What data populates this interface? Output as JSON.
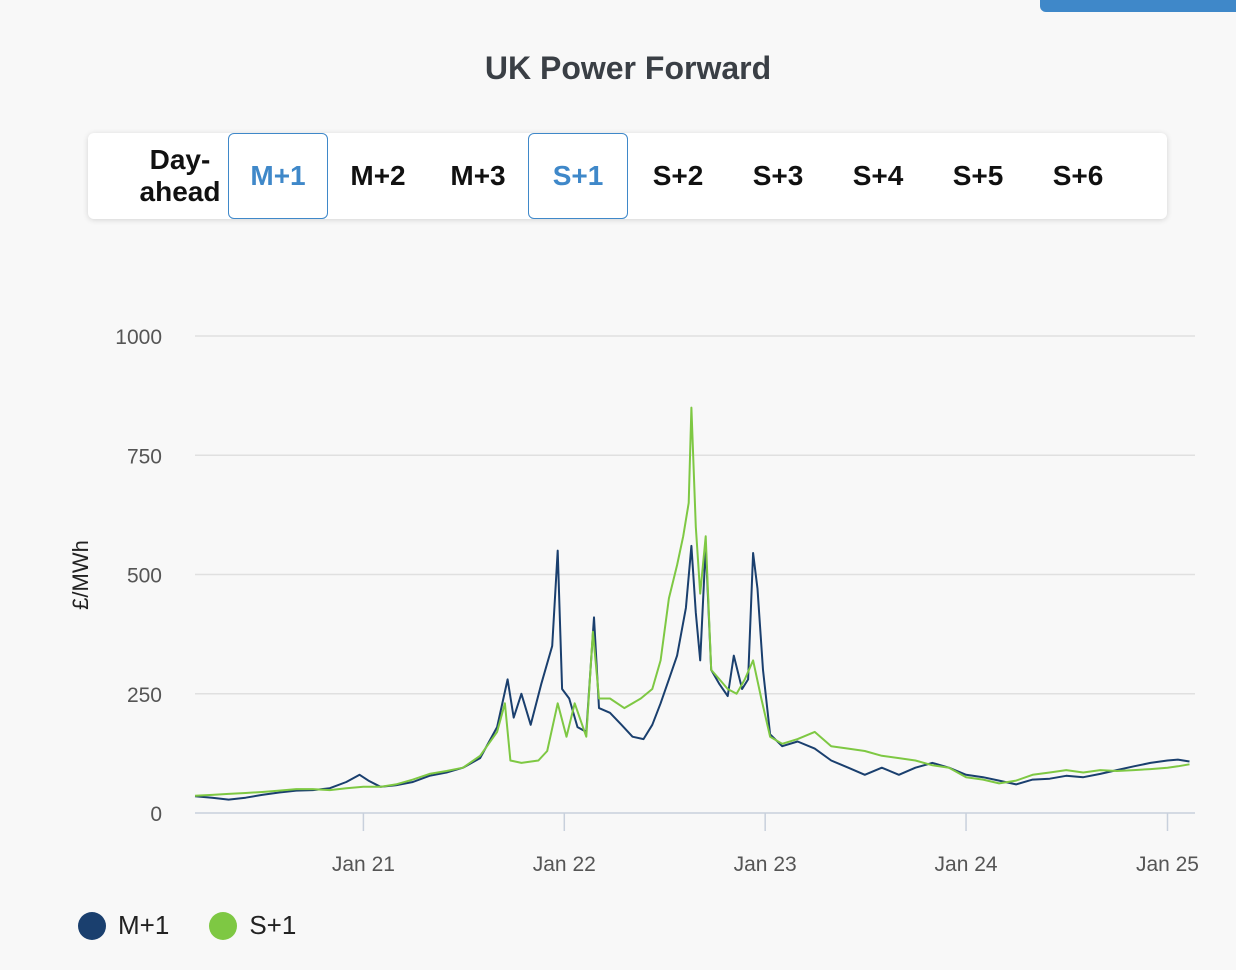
{
  "header": {
    "title": "UK Power Forward"
  },
  "tabs": [
    {
      "label": "Day-ahead",
      "active": false
    },
    {
      "label": "M+1",
      "active": true
    },
    {
      "label": "M+2",
      "active": false
    },
    {
      "label": "M+3",
      "active": false
    },
    {
      "label": "S+1",
      "active": true
    },
    {
      "label": "S+2",
      "active": false
    },
    {
      "label": "S+3",
      "active": false
    },
    {
      "label": "S+4",
      "active": false
    },
    {
      "label": "S+5",
      "active": false
    },
    {
      "label": "S+6",
      "active": false
    }
  ],
  "colors": {
    "accent": "#3f88c9",
    "m1": "#1a3f6e",
    "s1": "#7ec843",
    "grid": "#e0e0e0"
  },
  "chart_data": {
    "type": "line",
    "title": "UK Power Forward",
    "ylabel": "£/MWh",
    "xlabel": "",
    "ylim": [
      0,
      1000
    ],
    "yticks": [
      0,
      250,
      500,
      750,
      1000
    ],
    "xlim": [
      "2020-03-01",
      "2025-02-20"
    ],
    "xticks": [
      {
        "label": "Jan 21",
        "date": "2021-01-01"
      },
      {
        "label": "Jan 22",
        "date": "2022-01-01"
      },
      {
        "label": "Jan 23",
        "date": "2023-01-01"
      },
      {
        "label": "Jan 24",
        "date": "2024-01-01"
      },
      {
        "label": "Jan 25",
        "date": "2025-01-01"
      }
    ],
    "grid": true,
    "legend": "bottom-left",
    "series": [
      {
        "name": "M+1",
        "color": "#1a3f6e",
        "points": [
          [
            "2020-03-01",
            35
          ],
          [
            "2020-04-01",
            32
          ],
          [
            "2020-05-01",
            28
          ],
          [
            "2020-06-01",
            32
          ],
          [
            "2020-07-01",
            38
          ],
          [
            "2020-08-01",
            43
          ],
          [
            "2020-09-01",
            47
          ],
          [
            "2020-10-01",
            48
          ],
          [
            "2020-11-01",
            52
          ],
          [
            "2020-12-01",
            65
          ],
          [
            "2020-12-25",
            80
          ],
          [
            "2021-01-10",
            68
          ],
          [
            "2021-02-01",
            55
          ],
          [
            "2021-03-01",
            58
          ],
          [
            "2021-04-01",
            65
          ],
          [
            "2021-05-01",
            78
          ],
          [
            "2021-06-01",
            85
          ],
          [
            "2021-07-01",
            95
          ],
          [
            "2021-08-01",
            115
          ],
          [
            "2021-09-01",
            180
          ],
          [
            "2021-09-20",
            280
          ],
          [
            "2021-10-01",
            200
          ],
          [
            "2021-10-15",
            250
          ],
          [
            "2021-11-01",
            185
          ],
          [
            "2021-11-20",
            270
          ],
          [
            "2021-12-10",
            350
          ],
          [
            "2021-12-20",
            550
          ],
          [
            "2021-12-28",
            260
          ],
          [
            "2022-01-10",
            240
          ],
          [
            "2022-01-25",
            180
          ],
          [
            "2022-02-10",
            170
          ],
          [
            "2022-02-24",
            410
          ],
          [
            "2022-03-05",
            220
          ],
          [
            "2022-03-25",
            210
          ],
          [
            "2022-04-15",
            185
          ],
          [
            "2022-05-05",
            160
          ],
          [
            "2022-05-25",
            155
          ],
          [
            "2022-06-10",
            185
          ],
          [
            "2022-06-25",
            230
          ],
          [
            "2022-07-10",
            280
          ],
          [
            "2022-07-25",
            330
          ],
          [
            "2022-08-10",
            430
          ],
          [
            "2022-08-20",
            560
          ],
          [
            "2022-08-28",
            420
          ],
          [
            "2022-09-05",
            320
          ],
          [
            "2022-09-15",
            560
          ],
          [
            "2022-09-25",
            300
          ],
          [
            "2022-10-10",
            270
          ],
          [
            "2022-10-25",
            245
          ],
          [
            "2022-11-05",
            330
          ],
          [
            "2022-11-20",
            260
          ],
          [
            "2022-12-01",
            280
          ],
          [
            "2022-12-10",
            545
          ],
          [
            "2022-12-18",
            470
          ],
          [
            "2022-12-28",
            300
          ],
          [
            "2023-01-10",
            165
          ],
          [
            "2023-02-01",
            140
          ],
          [
            "2023-03-01",
            150
          ],
          [
            "2023-04-01",
            135
          ],
          [
            "2023-05-01",
            110
          ],
          [
            "2023-06-01",
            95
          ],
          [
            "2023-07-01",
            80
          ],
          [
            "2023-08-01",
            95
          ],
          [
            "2023-09-01",
            80
          ],
          [
            "2023-10-01",
            95
          ],
          [
            "2023-11-01",
            105
          ],
          [
            "2023-12-01",
            95
          ],
          [
            "2024-01-01",
            80
          ],
          [
            "2024-02-01",
            75
          ],
          [
            "2024-03-01",
            68
          ],
          [
            "2024-04-01",
            60
          ],
          [
            "2024-05-01",
            70
          ],
          [
            "2024-06-01",
            72
          ],
          [
            "2024-07-01",
            78
          ],
          [
            "2024-08-01",
            75
          ],
          [
            "2024-09-01",
            82
          ],
          [
            "2024-10-01",
            90
          ],
          [
            "2024-11-01",
            98
          ],
          [
            "2024-12-01",
            105
          ],
          [
            "2025-01-01",
            110
          ],
          [
            "2025-01-20",
            112
          ],
          [
            "2025-02-10",
            108
          ]
        ]
      },
      {
        "name": "S+1",
        "color": "#7ec843",
        "points": [
          [
            "2020-03-01",
            36
          ],
          [
            "2020-04-01",
            38
          ],
          [
            "2020-05-01",
            40
          ],
          [
            "2020-06-01",
            42
          ],
          [
            "2020-07-01",
            44
          ],
          [
            "2020-08-01",
            47
          ],
          [
            "2020-09-01",
            50
          ],
          [
            "2020-10-01",
            50
          ],
          [
            "2020-11-01",
            48
          ],
          [
            "2020-12-01",
            52
          ],
          [
            "2021-01-01",
            55
          ],
          [
            "2021-02-01",
            55
          ],
          [
            "2021-03-01",
            60
          ],
          [
            "2021-04-01",
            70
          ],
          [
            "2021-05-01",
            82
          ],
          [
            "2021-06-01",
            88
          ],
          [
            "2021-07-01",
            95
          ],
          [
            "2021-08-01",
            120
          ],
          [
            "2021-09-01",
            170
          ],
          [
            "2021-09-15",
            230
          ],
          [
            "2021-09-25",
            110
          ],
          [
            "2021-10-15",
            105
          ],
          [
            "2021-11-15",
            110
          ],
          [
            "2021-12-01",
            130
          ],
          [
            "2021-12-20",
            230
          ],
          [
            "2022-01-05",
            160
          ],
          [
            "2022-01-20",
            230
          ],
          [
            "2022-02-10",
            160
          ],
          [
            "2022-02-22",
            380
          ],
          [
            "2022-03-05",
            240
          ],
          [
            "2022-03-25",
            240
          ],
          [
            "2022-04-20",
            220
          ],
          [
            "2022-05-20",
            240
          ],
          [
            "2022-06-10",
            260
          ],
          [
            "2022-06-25",
            320
          ],
          [
            "2022-07-10",
            450
          ],
          [
            "2022-07-25",
            520
          ],
          [
            "2022-08-05",
            580
          ],
          [
            "2022-08-15",
            650
          ],
          [
            "2022-08-20",
            850
          ],
          [
            "2022-08-28",
            600
          ],
          [
            "2022-09-05",
            460
          ],
          [
            "2022-09-15",
            580
          ],
          [
            "2022-09-25",
            300
          ],
          [
            "2022-10-10",
            280
          ],
          [
            "2022-10-25",
            260
          ],
          [
            "2022-11-10",
            250
          ],
          [
            "2022-11-25",
            280
          ],
          [
            "2022-12-10",
            320
          ],
          [
            "2022-12-25",
            240
          ],
          [
            "2023-01-10",
            160
          ],
          [
            "2023-02-01",
            145
          ],
          [
            "2023-03-01",
            155
          ],
          [
            "2023-04-01",
            170
          ],
          [
            "2023-05-01",
            140
          ],
          [
            "2023-06-01",
            135
          ],
          [
            "2023-07-01",
            130
          ],
          [
            "2023-08-01",
            120
          ],
          [
            "2023-09-01",
            115
          ],
          [
            "2023-10-01",
            110
          ],
          [
            "2023-11-01",
            100
          ],
          [
            "2023-12-01",
            95
          ],
          [
            "2024-01-01",
            75
          ],
          [
            "2024-02-01",
            70
          ],
          [
            "2024-03-01",
            62
          ],
          [
            "2024-04-01",
            68
          ],
          [
            "2024-05-01",
            80
          ],
          [
            "2024-06-01",
            85
          ],
          [
            "2024-07-01",
            90
          ],
          [
            "2024-08-01",
            85
          ],
          [
            "2024-09-01",
            90
          ],
          [
            "2024-10-01",
            88
          ],
          [
            "2024-11-01",
            90
          ],
          [
            "2024-12-01",
            92
          ],
          [
            "2025-01-01",
            95
          ],
          [
            "2025-01-20",
            98
          ],
          [
            "2025-02-10",
            102
          ]
        ]
      }
    ]
  }
}
